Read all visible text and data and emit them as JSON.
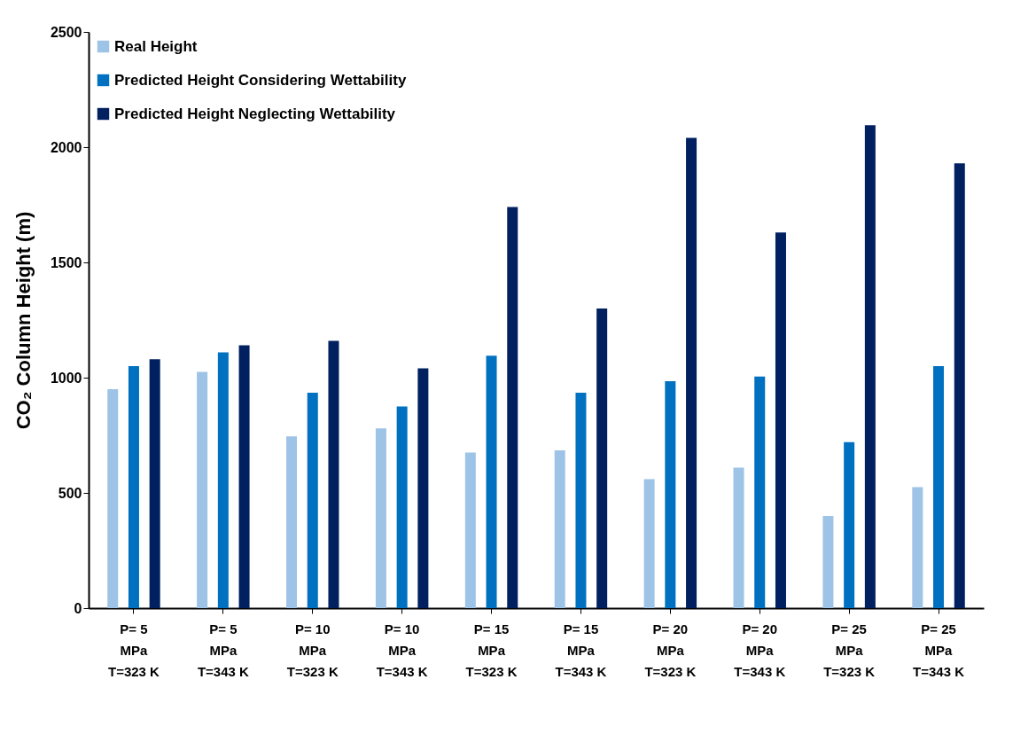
{
  "chart_data": {
    "type": "bar",
    "ylabel": "CO₂ Column Height (m)",
    "categories": [
      "P= 5\nMPa\nT=323 K",
      "P= 5\nMPa\nT=343 K",
      "P= 10\nMPa\nT=323 K",
      "P= 10\nMPa\nT=343 K",
      "P= 15\nMPa\nT=323 K",
      "P= 15\nMPa\nT=343 K",
      "P= 20\nMPa\nT=323 K",
      "P= 20\nMPa\nT=343 K",
      "P= 25\nMPa\nT=323 K",
      "P= 25\nMPa\nT=343 K"
    ],
    "series": [
      {
        "name": "Real Height",
        "color": "#9dc3e6",
        "values": [
          950,
          1025,
          745,
          780,
          675,
          685,
          560,
          610,
          400,
          525
        ]
      },
      {
        "name": "Predicted Height Considering Wettability",
        "color": "#0070c0",
        "values": [
          1050,
          1110,
          935,
          875,
          1095,
          935,
          985,
          1005,
          720,
          1050
        ]
      },
      {
        "name": "Predicted Height Neglecting Wettability",
        "color": "#002060",
        "values": [
          1080,
          1140,
          1160,
          1040,
          1740,
          1300,
          2040,
          1630,
          2095,
          1930
        ]
      }
    ],
    "ylim": [
      0,
      2500
    ],
    "yticks": [
      0,
      500,
      1000,
      1500,
      2000,
      2500
    ],
    "grid": false,
    "legend": "top left"
  }
}
